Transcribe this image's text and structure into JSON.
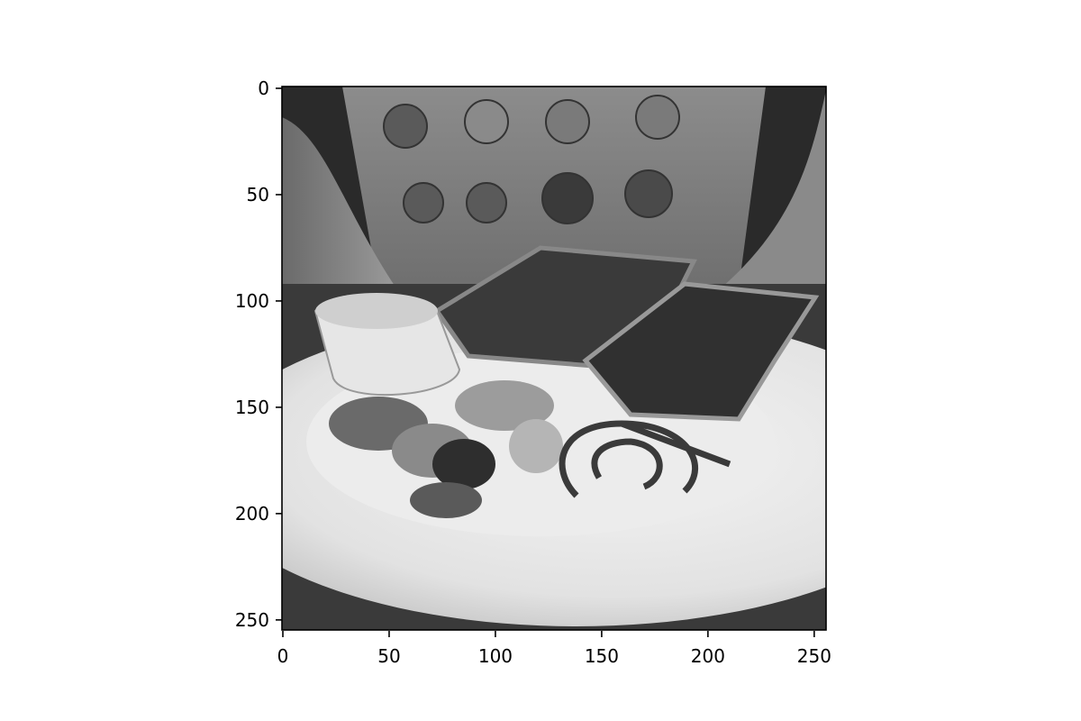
{
  "image": {
    "description_name": "breakfast-plate-grayscale",
    "colormap": "gray",
    "extent": [
      0,
      256
    ]
  },
  "axes": {
    "x_ticks": [
      "0",
      "50",
      "100",
      "150",
      "200",
      "250"
    ],
    "y_ticks": [
      "0",
      "50",
      "100",
      "150",
      "200",
      "250"
    ],
    "x_values": [
      0,
      50,
      100,
      150,
      200,
      250
    ],
    "y_values": [
      0,
      50,
      100,
      150,
      200,
      250
    ]
  }
}
